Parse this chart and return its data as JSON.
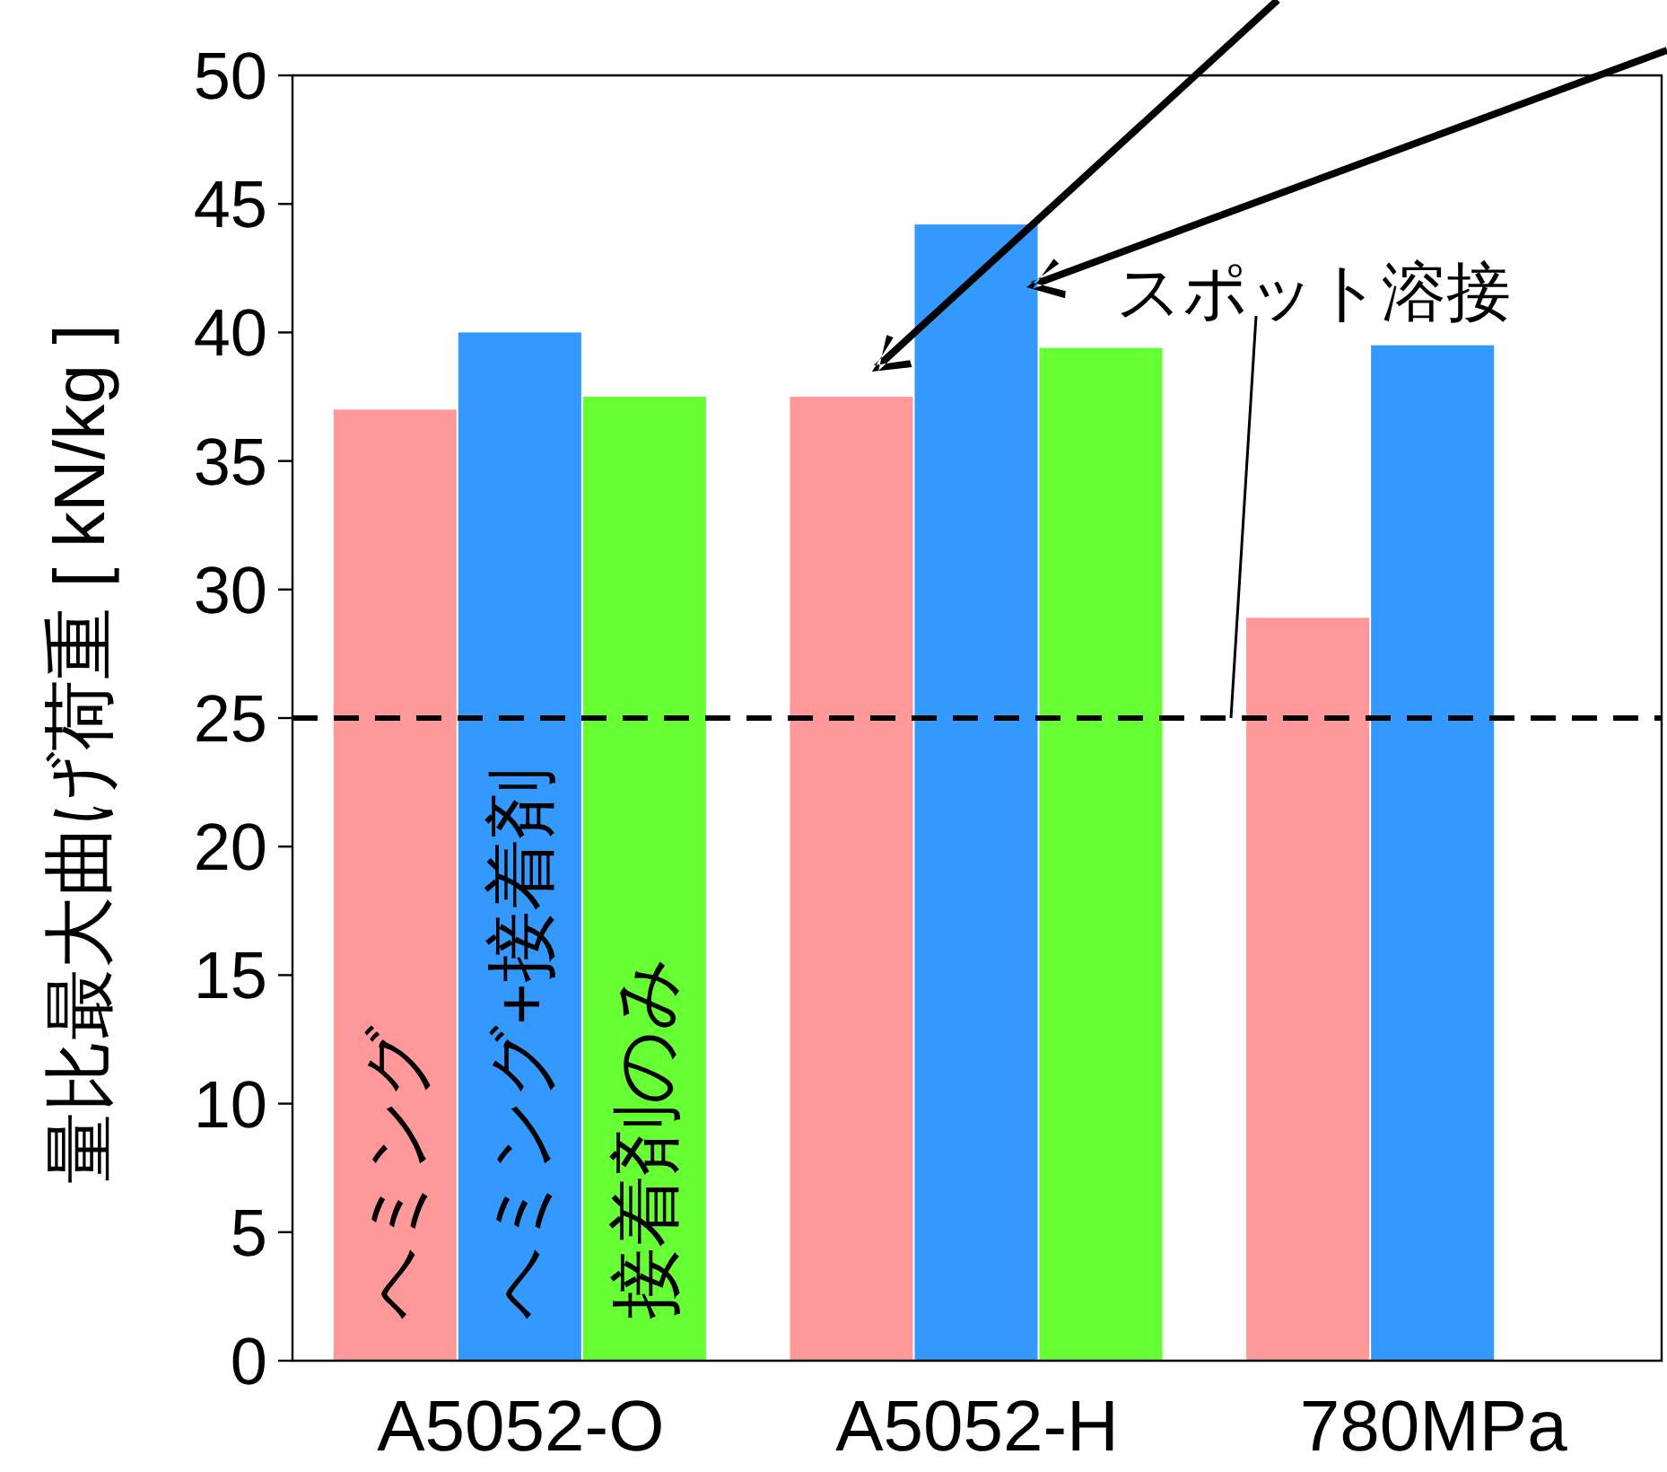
{
  "chart_data": {
    "type": "bar",
    "ylabel": "量比最大曲げ荷重 [ kN/kg ]",
    "categories": [
      "A5052-O",
      "A5052-H",
      "780MPa"
    ],
    "series": [
      {
        "name": "ヘミング",
        "color": "#ff9999",
        "values": [
          37,
          37.5,
          28.9
        ]
      },
      {
        "name": "ヘミング+接着剤",
        "color": "#3399ff",
        "values": [
          40,
          44.2,
          39.5
        ]
      },
      {
        "name": "接着剤のみ",
        "color": "#66ff33",
        "values": [
          37.5,
          39.4,
          null
        ]
      }
    ],
    "ylim": [
      0,
      50
    ],
    "yticks": [
      0,
      5,
      10,
      15,
      20,
      25,
      30,
      35,
      40,
      45,
      50
    ],
    "grid": false,
    "ref_lines": [
      {
        "axis": "y",
        "value": 25,
        "label": "スポット溶接",
        "line_style": "dashed",
        "color": "#000000"
      }
    ]
  }
}
